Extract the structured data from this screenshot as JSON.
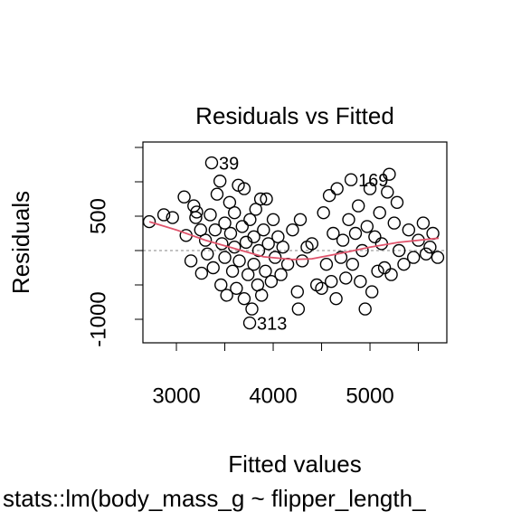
{
  "chart_data": {
    "type": "scatter",
    "title": "Residuals vs Fitted",
    "x_label": "Fitted values",
    "y_label": "Residuals",
    "subtitle": "stats::lm(body_mass_g ~ flipper_length_",
    "xlim": [
      2654,
      5794
    ],
    "ylim": [
      -1342,
      1579
    ],
    "xticks": [
      3000,
      4000,
      5000
    ],
    "xminor_ticks": [
      3500,
      4500,
      5500
    ],
    "yticks": [
      -1000,
      500
    ],
    "yminor_ticks": [
      -500,
      0,
      1000,
      1500
    ],
    "zero_line": 0,
    "x": [
      2720,
      2870,
      2960,
      3080,
      3100,
      3150,
      3180,
      3200,
      3210,
      3250,
      3260,
      3300,
      3320,
      3350,
      3364,
      3380,
      3400,
      3420,
      3450,
      3460,
      3470,
      3500,
      3500,
      3520,
      3550,
      3560,
      3580,
      3600,
      3600,
      3620,
      3640,
      3650,
      3680,
      3700,
      3700,
      3720,
      3740,
      3757,
      3760,
      3780,
      3800,
      3800,
      3820,
      3840,
      3850,
      3870,
      3880,
      3900,
      3920,
      3930,
      3950,
      3980,
      4000,
      4020,
      4050,
      4080,
      4100,
      4150,
      4200,
      4250,
      4260,
      4280,
      4300,
      4350,
      4400,
      4450,
      4500,
      4520,
      4550,
      4580,
      4600,
      4620,
      4650,
      4660,
      4700,
      4720,
      4750,
      4780,
      4804,
      4820,
      4850,
      4880,
      4900,
      4920,
      4950,
      4970,
      5000,
      5020,
      5050,
      5080,
      5100,
      5120,
      5150,
      5180,
      5200,
      5220,
      5250,
      5280,
      5300,
      5350,
      5400,
      5450,
      5500,
      5550,
      5580,
      5620,
      5650,
      5700
    ],
    "series": [
      {
        "name": "Residuals",
        "color": "#000000",
        "values": [
          420,
          520,
          480,
          780,
          220,
          -150,
          650,
          480,
          560,
          300,
          -330,
          150,
          -50,
          520,
          1276,
          -250,
          300,
          820,
          1010,
          -500,
          100,
          -100,
          400,
          -650,
          700,
          250,
          -300,
          50,
          550,
          -550,
          950,
          -150,
          350,
          900,
          -700,
          120,
          -350,
          -1053,
          450,
          -850,
          200,
          -200,
          600,
          -500,
          0,
          750,
          -650,
          300,
          -300,
          750,
          100,
          -450,
          450,
          -100,
          200,
          -350,
          50,
          -200,
          300,
          -600,
          -850,
          450,
          -150,
          50,
          100,
          -500,
          -550,
          550,
          -200,
          800,
          -450,
          250,
          -700,
          900,
          -100,
          150,
          -400,
          450,
          1030,
          -200,
          250,
          650,
          -450,
          0,
          -850,
          350,
          900,
          -600,
          200,
          -300,
          550,
          100,
          -250,
          850,
          1110,
          -350,
          400,
          700,
          0,
          -200,
          300,
          -100,
          150,
          400,
          -50,
          50,
          250,
          -100
        ]
      }
    ],
    "smooth": {
      "color": "#DF536B",
      "x": [
        2720,
        3000,
        3300,
        3600,
        3900,
        4200,
        4400,
        4700,
        5000,
        5300,
        5710
      ],
      "values": [
        420,
        300,
        150,
        30,
        -90,
        -130,
        -120,
        -40,
        50,
        120,
        180
      ]
    },
    "annotations": [
      {
        "text": "39",
        "x": 3364,
        "y": 1276
      },
      {
        "text": "169",
        "x": 4804,
        "y": 1030
      },
      {
        "text": "313",
        "x": 3757,
        "y": -1053
      }
    ]
  }
}
